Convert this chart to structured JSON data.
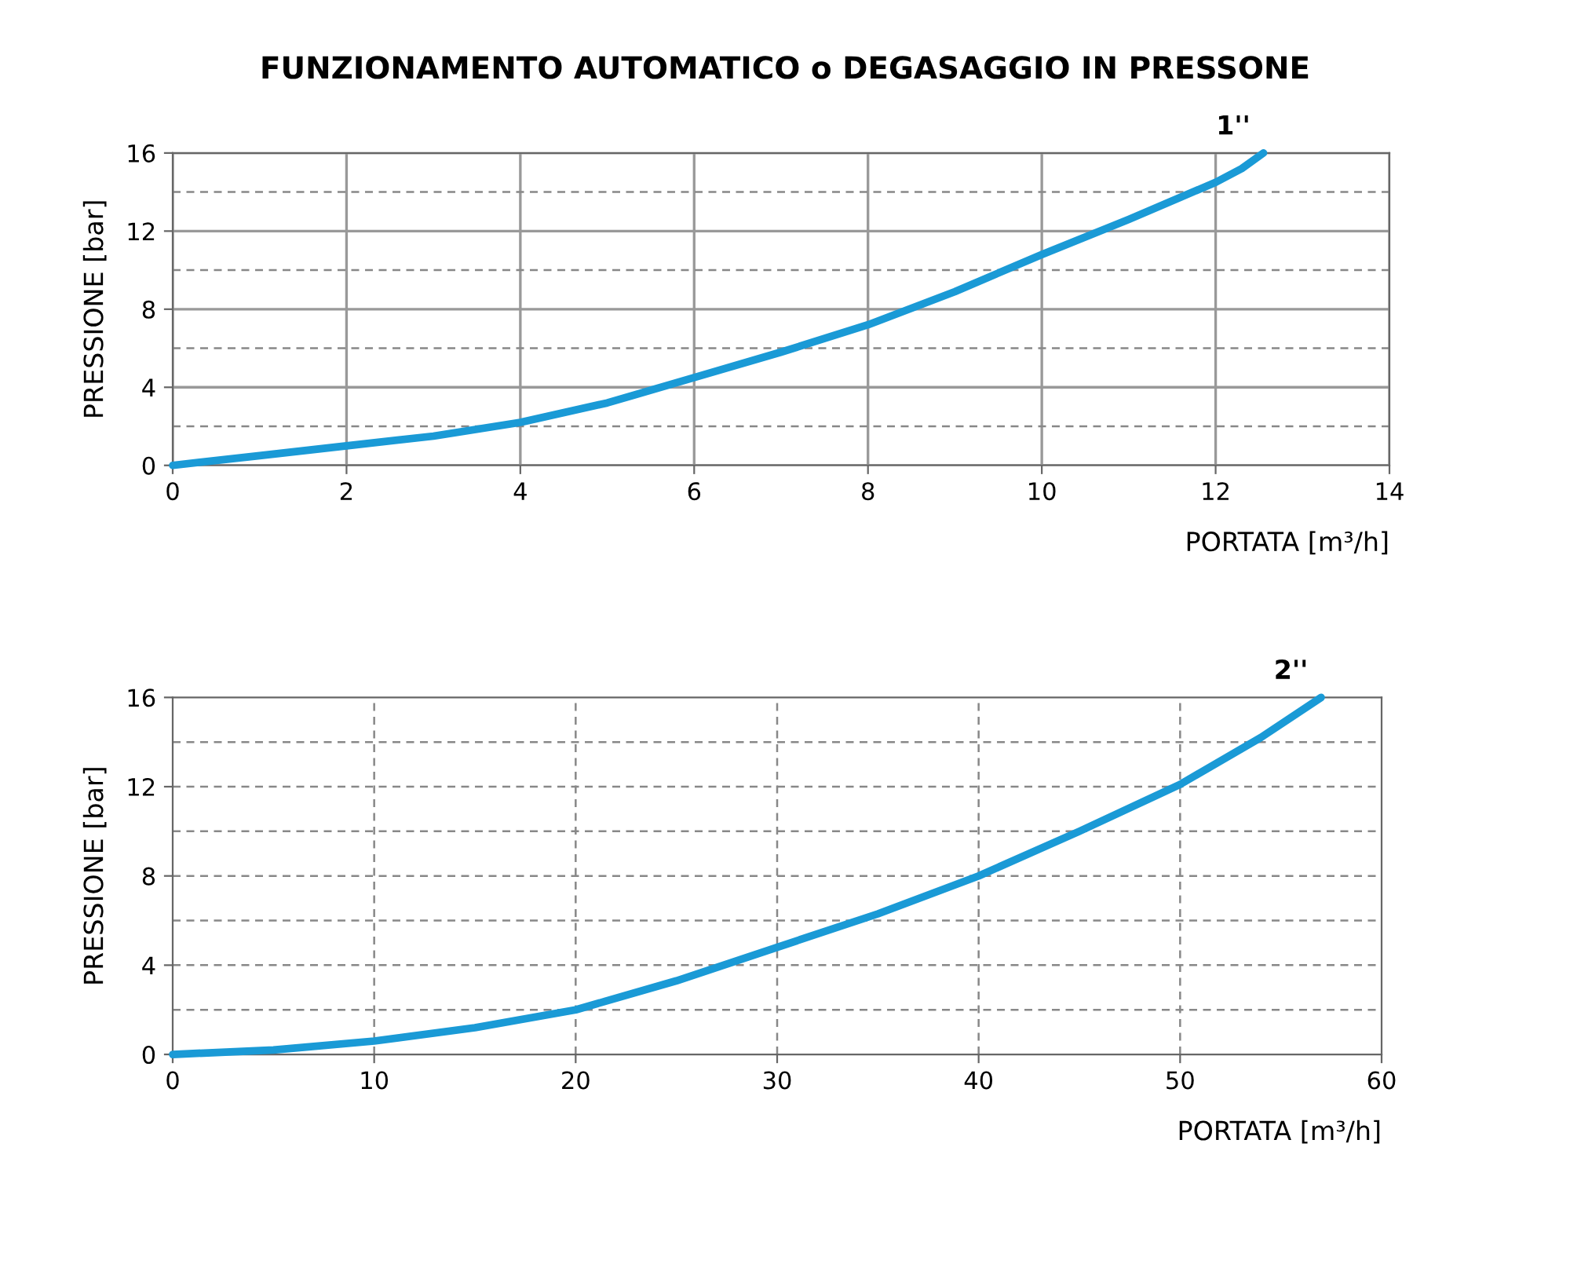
{
  "chart_data": [
    {
      "type": "line",
      "title": "FUNZIONAMENTO AUTOMATICO o DEGASAGGIO IN PRESSONE",
      "xlabel": "PORTATA [m³/h]",
      "ylabel": "PRESSIONE [bar]",
      "series": [
        {
          "name": "1''",
          "color": "#1a9ad6",
          "x": [
            0,
            1,
            2,
            3,
            4,
            5,
            6,
            7,
            8,
            9,
            10,
            11,
            12,
            12.3,
            12.55
          ],
          "values": [
            0,
            0.5,
            1.0,
            1.5,
            2.2,
            3.2,
            4.5,
            5.8,
            7.2,
            8.9,
            10.8,
            12.6,
            14.5,
            15.2,
            16
          ]
        }
      ],
      "xlim": [
        0,
        14
      ],
      "xticks": [
        0,
        2,
        4,
        6,
        8,
        10,
        12,
        14
      ],
      "ylim": [
        0,
        16
      ],
      "yticks": [
        0,
        4,
        8,
        12,
        16
      ],
      "grid": true,
      "ref_lines": [
        {
          "axis": "y",
          "value": 2,
          "line_style": "dashed"
        },
        {
          "axis": "y",
          "value": 6,
          "line_style": "dashed"
        },
        {
          "axis": "y",
          "value": 10,
          "line_style": "dashed"
        },
        {
          "axis": "y",
          "value": 14,
          "line_style": "dashed"
        }
      ]
    },
    {
      "type": "line",
      "xlabel": "PORTATA [m³/h]",
      "ylabel": "PRESSIONE [bar]",
      "series": [
        {
          "name": "2''",
          "color": "#1a9ad6",
          "x": [
            0,
            5,
            10,
            15,
            20,
            25,
            30,
            35,
            40,
            45,
            50,
            54,
            57
          ],
          "values": [
            0,
            0.2,
            0.6,
            1.2,
            2.0,
            3.3,
            4.8,
            6.3,
            8.0,
            10.0,
            12.1,
            14.2,
            16
          ]
        }
      ],
      "xlim": [
        0,
        60
      ],
      "xticks": [
        0,
        10,
        20,
        30,
        40,
        50,
        60
      ],
      "ylim": [
        0,
        16
      ],
      "yticks": [
        0,
        4,
        8,
        12,
        16
      ],
      "grid": false,
      "ref_lines": [
        {
          "axis": "x",
          "value": 10,
          "line_style": "dashed"
        },
        {
          "axis": "x",
          "value": 20,
          "line_style": "dashed"
        },
        {
          "axis": "x",
          "value": 30,
          "line_style": "dashed"
        },
        {
          "axis": "x",
          "value": 40,
          "line_style": "dashed"
        },
        {
          "axis": "x",
          "value": 50,
          "line_style": "dashed"
        },
        {
          "axis": "y",
          "value": 2,
          "line_style": "dashed"
        },
        {
          "axis": "y",
          "value": 4,
          "line_style": "dashed"
        },
        {
          "axis": "y",
          "value": 6,
          "line_style": "dashed"
        },
        {
          "axis": "y",
          "value": 8,
          "line_style": "dashed"
        },
        {
          "axis": "y",
          "value": 10,
          "line_style": "dashed"
        },
        {
          "axis": "y",
          "value": 12,
          "line_style": "dashed"
        },
        {
          "axis": "y",
          "value": 14,
          "line_style": "dashed"
        }
      ]
    }
  ]
}
